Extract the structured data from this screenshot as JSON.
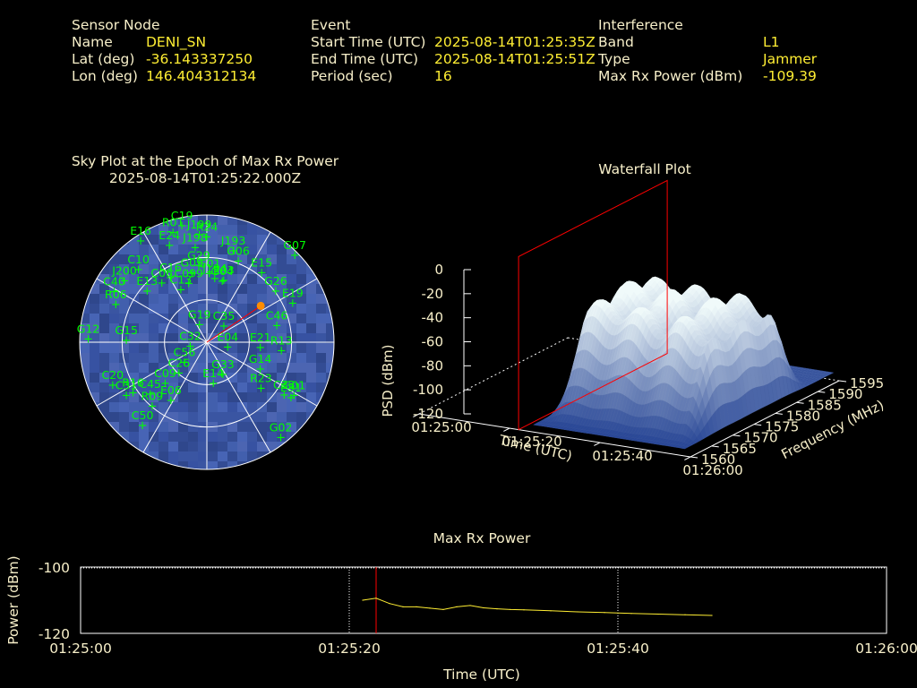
{
  "info": {
    "sensor_header": "Sensor Node",
    "name_label": "Name",
    "name_value": "DENI_SN",
    "lat_label": "Lat (deg)",
    "lat_value": "-36.143337250",
    "lon_label": "Lon (deg)",
    "lon_value": "146.404312134",
    "event_header": "Event",
    "start_label": "Start Time (UTC)",
    "start_value": "2025-08-14T01:25:35Z",
    "end_label": "End Time (UTC)",
    "end_value": "2025-08-14T01:25:51Z",
    "period_label": "Period (sec)",
    "period_value": "16",
    "interf_header": "Interference",
    "band_label": "Band",
    "band_value": "L1",
    "type_label": "Type",
    "type_value": "Jammer",
    "maxrx_label": "Max Rx Power (dBm)",
    "maxrx_value": "-109.39"
  },
  "colors": {
    "text": "#f7efc9",
    "value": "#ffee33",
    "satellite": "#00ff00",
    "marker": "#ff8c00",
    "red": "#ff0000",
    "sky_blue": "#3d5aa8",
    "power_line": "#ffee33"
  },
  "chart_data": [
    {
      "type": "scatter",
      "subtype": "polar-sky-plot",
      "title": "Sky Plot at the Epoch of Max Rx Power",
      "subtitle": "2025-08-14T01:25:22.000Z",
      "elevation_rings_deg": [
        0,
        30,
        60
      ],
      "satellites": [
        {
          "label": "C19",
          "az": -12,
          "el": 5
        },
        {
          "label": "R01",
          "az": -17,
          "el": 8
        },
        {
          "label": "E16",
          "az": -33,
          "el": 4
        },
        {
          "label": "E24",
          "az": -21,
          "el": 16
        },
        {
          "label": "J198",
          "az": -7,
          "el": 22
        },
        {
          "label": "J199",
          "az": -4,
          "el": 13
        },
        {
          "label": "R24",
          "az": 0,
          "el": 15
        },
        {
          "label": "J193",
          "az": 16,
          "el": 22
        },
        {
          "label": "G06",
          "az": 21,
          "el": 28
        },
        {
          "label": "G07",
          "az": 45,
          "el": 2
        },
        {
          "label": "G29",
          "az": -6,
          "el": 35
        },
        {
          "label": "E15",
          "az": 38,
          "el": 27
        },
        {
          "label": "G04",
          "az": 14,
          "el": 45
        },
        {
          "label": "E03",
          "az": 15,
          "el": 44
        },
        {
          "label": "G09",
          "az": -12,
          "el": 39
        },
        {
          "label": "G01",
          "az": 2,
          "el": 41
        },
        {
          "label": "J194",
          "az": 7,
          "el": 44
        },
        {
          "label": "C10",
          "az": -43,
          "el": 19
        },
        {
          "label": "C06",
          "az": -37,
          "el": 37
        },
        {
          "label": "C16",
          "az": -29,
          "el": 37
        },
        {
          "label": "C099",
          "az": -17,
          "el": 46
        },
        {
          "label": "C13",
          "az": -26,
          "el": 48
        },
        {
          "label": "G26",
          "az": 53,
          "el": 29
        },
        {
          "label": "E19",
          "az": 65,
          "el": 23
        },
        {
          "label": "J200",
          "az": -53,
          "el": 17
        },
        {
          "label": "E13",
          "az": -49,
          "el": 34
        },
        {
          "label": "C40",
          "az": -61,
          "el": 15
        },
        {
          "label": "R06",
          "az": -67,
          "el": 20
        },
        {
          "label": "G19",
          "az": -22,
          "el": 76
        },
        {
          "label": "C35",
          "az": 45,
          "el": 73
        },
        {
          "label": "C46",
          "az": 76,
          "el": 39
        },
        {
          "label": "G12",
          "az": -88,
          "el": 6
        },
        {
          "label": "G15",
          "az": -88,
          "el": 33
        },
        {
          "label": "E04",
          "az": 101,
          "el": 75
        },
        {
          "label": "E21",
          "az": 95,
          "el": 52
        },
        {
          "label": "R13",
          "az": 96,
          "el": 37
        },
        {
          "label": "C32",
          "az": -101,
          "el": 78
        },
        {
          "label": "C56",
          "az": -131,
          "el": 69
        },
        {
          "label": "C26",
          "az": -137,
          "el": 61
        },
        {
          "label": "G14",
          "az": 116,
          "el": 48
        },
        {
          "label": "E14",
          "az": 171,
          "el": 61
        },
        {
          "label": "G33",
          "az": 153,
          "el": 65
        },
        {
          "label": "C09",
          "az": -134,
          "el": 49
        },
        {
          "label": "R23",
          "az": 130,
          "el": 40
        },
        {
          "label": "C33",
          "az": 124,
          "el": 24
        },
        {
          "label": "E31",
          "az": 123,
          "el": 19
        },
        {
          "label": "G01",
          "az": 121,
          "el": 18
        },
        {
          "label": "C45",
          "az": -132,
          "el": 36
        },
        {
          "label": "E06",
          "az": -148,
          "el": 42
        },
        {
          "label": "C31",
          "az": -123,
          "el": 22
        },
        {
          "label": "R16",
          "az": -124,
          "el": 27
        },
        {
          "label": "C20",
          "az": -114,
          "el": 17
        },
        {
          "label": "R09",
          "az": -139,
          "el": 31
        },
        {
          "label": "C50",
          "az": -142,
          "el": 16
        },
        {
          "label": "G02",
          "az": 142,
          "el": 5
        }
      ],
      "max_rx_marker": {
        "az": 56,
        "el": 44
      }
    },
    {
      "type": "area",
      "subtype": "3d-waterfall",
      "title": "Waterfall Plot",
      "xlabel": "Time (UTC)",
      "ylabel": "Frequency (MHz)",
      "zlabel": "PSD (dBm)",
      "x_ticks": [
        "01:25:00",
        "01:25:20",
        "01:25:40",
        "01:26:00"
      ],
      "y_ticks": [
        1560,
        1565,
        1570,
        1575,
        1580,
        1585,
        1590,
        1595
      ],
      "z_ticks": [
        0,
        -20,
        -40,
        -60,
        -80,
        -100,
        -120
      ],
      "xlim": [
        "01:25:00",
        "01:26:00"
      ],
      "ylim": [
        1560,
        1595
      ],
      "zlim": [
        -120,
        0
      ],
      "cursor_time": "01:25:22"
    },
    {
      "type": "line",
      "title": "Max Rx Power",
      "xlabel": "Time (UTC)",
      "ylabel": "Power (dBm)",
      "x_ticks": [
        "01:25:00",
        "01:25:20",
        "01:25:40",
        "01:26:00"
      ],
      "y_ticks": [
        -100,
        -120
      ],
      "xlim_sec": [
        0,
        60
      ],
      "ylim": [
        -120,
        -100
      ],
      "cursor_sec": 22,
      "x_sec": [
        21,
        22,
        23,
        24,
        25,
        26,
        27,
        28,
        29,
        30,
        31,
        32,
        33,
        35,
        37,
        39,
        41,
        43,
        45,
        47
      ],
      "values": [
        -110,
        -109.4,
        -111,
        -112,
        -112,
        -112.4,
        -112.8,
        -112,
        -111.6,
        -112.3,
        -112.6,
        -112.8,
        -112.9,
        -113.2,
        -113.5,
        -113.7,
        -114,
        -114.2,
        -114.4,
        -114.6
      ]
    }
  ]
}
